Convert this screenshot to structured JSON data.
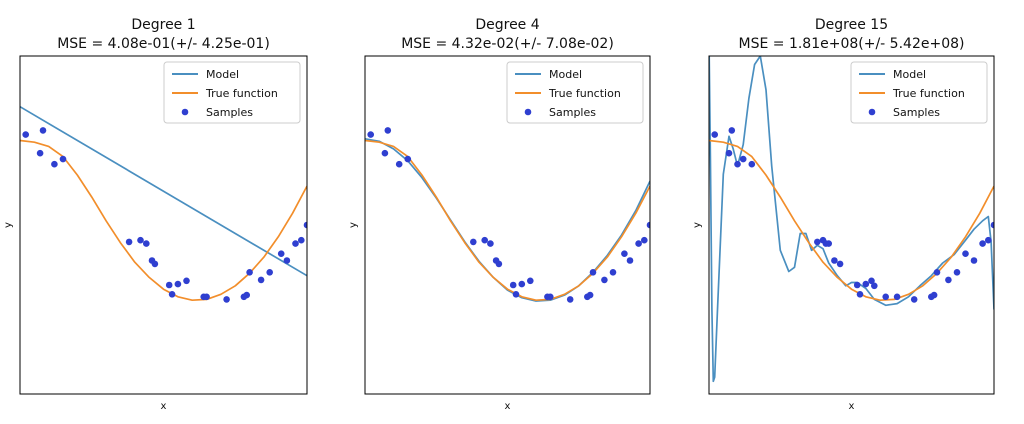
{
  "chart_data": [
    {
      "type": "line",
      "title": "Degree 1",
      "subtitle": "MSE = 4.08e-01(+/- 4.25e-01)",
      "xlabel": "x",
      "ylabel": "y",
      "xlim": [
        0,
        1
      ],
      "ylim": [
        -2,
        2
      ],
      "legend": {
        "placement": "top-right",
        "entries": [
          "Model",
          "True function",
          "Samples"
        ]
      },
      "colors": {
        "model": "#4a8fc0",
        "true_function": "#f28e2b",
        "samples": "#2f3fd0"
      },
      "series": [
        {
          "name": "Model",
          "x": [
            0,
            1
          ],
          "y": [
            1.4,
            -0.6
          ]
        },
        {
          "name": "True function",
          "x": [
            0,
            0.05,
            0.1,
            0.15,
            0.2,
            0.25,
            0.3,
            0.35,
            0.4,
            0.45,
            0.5,
            0.55,
            0.6,
            0.65,
            0.7,
            0.75,
            0.8,
            0.85,
            0.9,
            0.95,
            1.0
          ],
          "y": [
            1.0,
            0.98,
            0.93,
            0.81,
            0.59,
            0.33,
            0.05,
            -0.21,
            -0.44,
            -0.62,
            -0.76,
            -0.85,
            -0.89,
            -0.88,
            -0.82,
            -0.72,
            -0.57,
            -0.38,
            -0.14,
            0.14,
            0.46
          ]
        },
        {
          "name": "Samples",
          "x": [
            0.02,
            0.07,
            0.08,
            0.12,
            0.15,
            0.38,
            0.42,
            0.44,
            0.46,
            0.47,
            0.52,
            0.53,
            0.55,
            0.58,
            0.64,
            0.65,
            0.72,
            0.78,
            0.79,
            0.8,
            0.84,
            0.87,
            0.91,
            0.93,
            0.96,
            0.98,
            1.0
          ],
          "y": [
            1.07,
            0.85,
            1.12,
            0.72,
            0.78,
            -0.2,
            -0.18,
            -0.22,
            -0.42,
            -0.46,
            -0.71,
            -0.82,
            -0.7,
            -0.66,
            -0.85,
            -0.85,
            -0.88,
            -0.85,
            -0.83,
            -0.56,
            -0.65,
            -0.56,
            -0.34,
            -0.42,
            -0.22,
            -0.18,
            0.0
          ]
        }
      ]
    },
    {
      "type": "line",
      "title": "Degree 4",
      "subtitle": "MSE = 4.32e-02(+/- 7.08e-02)",
      "xlabel": "x",
      "ylabel": "y",
      "xlim": [
        0,
        1
      ],
      "ylim": [
        -2,
        2
      ],
      "legend": {
        "placement": "top-right",
        "entries": [
          "Model",
          "True function",
          "Samples"
        ]
      },
      "colors": {
        "model": "#4a8fc0",
        "true_function": "#f28e2b",
        "samples": "#2f3fd0"
      },
      "series": [
        {
          "name": "Model",
          "x": [
            0,
            0.05,
            0.1,
            0.15,
            0.2,
            0.25,
            0.3,
            0.35,
            0.4,
            0.45,
            0.5,
            0.55,
            0.6,
            0.65,
            0.7,
            0.75,
            0.8,
            0.85,
            0.9,
            0.95,
            1.0
          ],
          "y": [
            1.02,
            0.99,
            0.9,
            0.76,
            0.56,
            0.32,
            0.06,
            -0.2,
            -0.43,
            -0.62,
            -0.77,
            -0.86,
            -0.9,
            -0.89,
            -0.83,
            -0.72,
            -0.56,
            -0.36,
            -0.12,
            0.17,
            0.52
          ]
        },
        {
          "name": "True function",
          "x": [
            0,
            0.05,
            0.1,
            0.15,
            0.2,
            0.25,
            0.3,
            0.35,
            0.4,
            0.45,
            0.5,
            0.55,
            0.6,
            0.65,
            0.7,
            0.75,
            0.8,
            0.85,
            0.9,
            0.95,
            1.0
          ],
          "y": [
            1.0,
            0.98,
            0.93,
            0.81,
            0.59,
            0.33,
            0.05,
            -0.21,
            -0.44,
            -0.62,
            -0.76,
            -0.85,
            -0.89,
            -0.88,
            -0.82,
            -0.72,
            -0.57,
            -0.38,
            -0.14,
            0.14,
            0.46
          ]
        },
        {
          "name": "Samples",
          "x": [
            0.02,
            0.07,
            0.08,
            0.12,
            0.15,
            0.38,
            0.42,
            0.44,
            0.46,
            0.47,
            0.52,
            0.53,
            0.55,
            0.58,
            0.64,
            0.65,
            0.72,
            0.78,
            0.79,
            0.8,
            0.84,
            0.87,
            0.91,
            0.93,
            0.96,
            0.98,
            1.0
          ],
          "y": [
            1.07,
            0.85,
            1.12,
            0.72,
            0.78,
            -0.2,
            -0.18,
            -0.22,
            -0.42,
            -0.46,
            -0.71,
            -0.82,
            -0.7,
            -0.66,
            -0.85,
            -0.85,
            -0.88,
            -0.85,
            -0.83,
            -0.56,
            -0.65,
            -0.56,
            -0.34,
            -0.42,
            -0.22,
            -0.18,
            0.0
          ]
        }
      ]
    },
    {
      "type": "line",
      "title": "Degree 15",
      "subtitle": "MSE = 1.81e+08(+/- 5.42e+08)",
      "xlabel": "x",
      "ylabel": "y",
      "xlim": [
        0,
        1
      ],
      "ylim": [
        -2,
        2
      ],
      "legend": {
        "placement": "top-right",
        "entries": [
          "Model",
          "True function",
          "Samples"
        ]
      },
      "colors": {
        "model": "#4a8fc0",
        "true_function": "#f28e2b",
        "samples": "#2f3fd0"
      },
      "series": [
        {
          "name": "Model",
          "x": [
            0.0,
            0.005,
            0.01,
            0.015,
            0.02,
            0.03,
            0.05,
            0.07,
            0.085,
            0.1,
            0.12,
            0.14,
            0.16,
            0.18,
            0.2,
            0.22,
            0.25,
            0.28,
            0.3,
            0.32,
            0.34,
            0.36,
            0.38,
            0.4,
            0.42,
            0.45,
            0.48,
            0.5,
            0.52,
            0.55,
            0.58,
            0.62,
            0.66,
            0.7,
            0.74,
            0.78,
            0.82,
            0.86,
            0.9,
            0.93,
            0.96,
            0.98,
            0.99,
            1.0
          ],
          "y": [
            2.2,
            0.8,
            -1.0,
            -1.85,
            -1.8,
            -1.0,
            0.6,
            1.05,
            0.9,
            0.7,
            0.95,
            1.5,
            1.9,
            2.0,
            1.6,
            0.7,
            -0.3,
            -0.55,
            -0.5,
            -0.1,
            -0.1,
            -0.3,
            -0.24,
            -0.28,
            -0.45,
            -0.6,
            -0.72,
            -0.68,
            -0.68,
            -0.75,
            -0.88,
            -0.95,
            -0.93,
            -0.85,
            -0.72,
            -0.6,
            -0.45,
            -0.35,
            -0.18,
            -0.05,
            0.05,
            0.1,
            -0.2,
            -1.0
          ]
        },
        {
          "name": "True function",
          "x": [
            0,
            0.05,
            0.1,
            0.15,
            0.2,
            0.25,
            0.3,
            0.35,
            0.4,
            0.45,
            0.5,
            0.55,
            0.6,
            0.65,
            0.7,
            0.75,
            0.8,
            0.85,
            0.9,
            0.95,
            1.0
          ],
          "y": [
            1.0,
            0.98,
            0.93,
            0.81,
            0.59,
            0.33,
            0.05,
            -0.21,
            -0.44,
            -0.62,
            -0.76,
            -0.85,
            -0.89,
            -0.88,
            -0.82,
            -0.72,
            -0.57,
            -0.38,
            -0.14,
            0.14,
            0.46
          ]
        },
        {
          "name": "Samples",
          "x": [
            0.02,
            0.07,
            0.08,
            0.1,
            0.12,
            0.15,
            0.38,
            0.4,
            0.41,
            0.42,
            0.44,
            0.46,
            0.52,
            0.53,
            0.55,
            0.57,
            0.58,
            0.62,
            0.66,
            0.72,
            0.78,
            0.79,
            0.8,
            0.84,
            0.87,
            0.9,
            0.93,
            0.96,
            0.98,
            1.0
          ],
          "y": [
            1.07,
            0.85,
            1.12,
            0.72,
            0.78,
            0.72,
            -0.2,
            -0.18,
            -0.22,
            -0.22,
            -0.42,
            -0.46,
            -0.71,
            -0.82,
            -0.7,
            -0.66,
            -0.72,
            -0.85,
            -0.85,
            -0.88,
            -0.85,
            -0.83,
            -0.56,
            -0.65,
            -0.56,
            -0.34,
            -0.42,
            -0.22,
            -0.18,
            0.0
          ]
        }
      ]
    }
  ]
}
